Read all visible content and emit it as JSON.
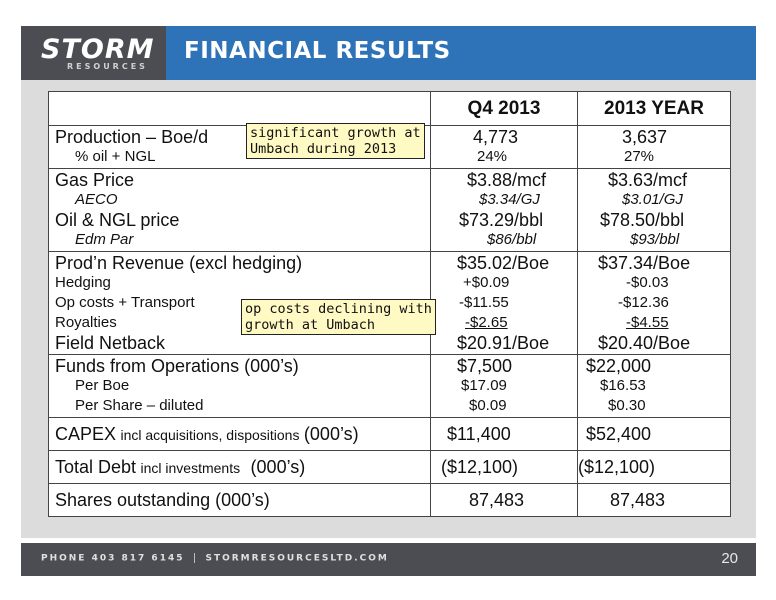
{
  "header": {
    "logo_main": "STORM",
    "logo_sub": "RESOURCES",
    "title": "FINANCIAL RESULTS"
  },
  "table": {
    "col_headers": [
      "",
      "Q4 2013",
      "2013 YEAR"
    ],
    "production": {
      "label": "Production – Boe/d",
      "q4": "4,773",
      "year": "3,637",
      "sub_label": "% oil + NGL",
      "sub_q4": "24%",
      "sub_year": "27%"
    },
    "prices": {
      "gas_label": "Gas Price",
      "gas_q4": "$3.88/mcf",
      "gas_year": "$3.63/mcf",
      "aeco_label": "AECO",
      "aeco_q4": "$3.34/GJ",
      "aeco_year": "$3.01/GJ",
      "oil_label": "Oil & NGL price",
      "oil_q4": "$73.29/bbl",
      "oil_year": "$78.50/bbl",
      "edm_label": "Edm Par",
      "edm_q4": "$86/bbl",
      "edm_year": "$93/bbl"
    },
    "netback": {
      "rev_label": "Prod’n Revenue (excl hedging)",
      "rev_q4": "$35.02/Boe",
      "rev_year": "$37.34/Boe",
      "hedge_label": "Hedging",
      "hedge_q4": "+$0.09",
      "hedge_year": "-$0.03",
      "opcost_label": "Op costs + Transport",
      "opcost_q4": "-$11.55",
      "opcost_year": "-$12.36",
      "roy_label": "Royalties",
      "roy_q4": "-$2.65",
      "roy_year": "-$4.55",
      "field_label": "Field Netback",
      "field_q4": "$20.91/Boe",
      "field_year": "$20.40/Boe"
    },
    "funds": {
      "label": "Funds from Operations (000’s)",
      "q4": "$7,500",
      "year": "$22,000",
      "boe_label": "Per Boe",
      "boe_q4": "$17.09",
      "boe_year": "$16.53",
      "share_label": "Per Share – diluted",
      "share_q4": "$0.09",
      "share_year": "$0.30"
    },
    "capex": {
      "label": "CAPEX",
      "label_small": "incl acquisitions, dispositions",
      "label_suffix": "(000’s)",
      "q4": "$11,400",
      "year": "$52,400"
    },
    "debt": {
      "label": "Total Debt",
      "label_small": "incl investments",
      "label_suffix": "(000’s)",
      "q4": "($12,100)",
      "year": "($12,100)"
    },
    "shares": {
      "label": "Shares outstanding (000’s)",
      "q4": "87,483",
      "year": "87,483"
    }
  },
  "callouts": {
    "growth": [
      "significant growth at",
      "Umbach during 2013"
    ],
    "opcost": [
      "op costs declining with",
      "growth at Umbach"
    ]
  },
  "footer": {
    "phone": "PHONE 403 817 6145",
    "website": "STORMRESOURCESLTD.COM",
    "page_number": "20"
  },
  "colors": {
    "header_blue": "#2e73b8",
    "logo_gray": "#4c4d52",
    "panel_gray": "#dcdcdc",
    "callout_yellow": "#fff9c4"
  }
}
